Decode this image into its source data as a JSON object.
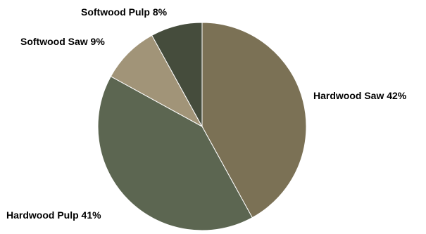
{
  "chart_data": {
    "type": "pie",
    "title": "",
    "start_angle_deg": 0,
    "direction": "clockwise",
    "slices": [
      {
        "label": "Hardwood Saw",
        "value": 42,
        "display": "Hardwood Saw 42%",
        "color": "#7b7155"
      },
      {
        "label": "Hardwood Pulp",
        "value": 41,
        "display": "Hardwood Pulp 41%",
        "color": "#5c6651"
      },
      {
        "label": "Softwood Saw",
        "value": 9,
        "display": "Softwood Saw 9%",
        "color": "#a19478"
      },
      {
        "label": "Softwood Pulp",
        "value": 8,
        "display": "Softwood Pulp 8%",
        "color": "#454c3c"
      }
    ],
    "legend": "none",
    "data_labels": "outside"
  }
}
